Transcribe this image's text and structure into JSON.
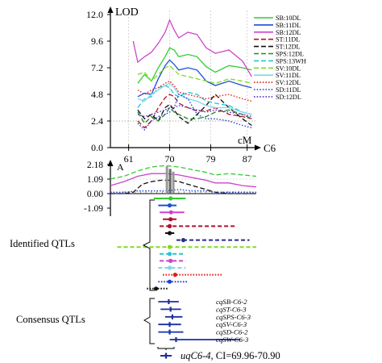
{
  "chart_data": [
    {
      "type": "line",
      "panel": "LOD profiles",
      "ylabel": "LOD",
      "xlabel": "cM",
      "chromosome_label": "C6",
      "ylim": [
        0,
        12
      ],
      "xlim": [
        57,
        89
      ],
      "y_ticks": [
        "0.0",
        "2.4",
        "4.8",
        "7.2",
        "9.6",
        "12.0"
      ],
      "x_ticks": [
        "61",
        "70",
        "79",
        "87"
      ],
      "legend_position": "right",
      "series": [
        {
          "name": "SB:10DL",
          "color": "#33cc33",
          "dash": "solid",
          "x": [
            63,
            64.5,
            66,
            67.5,
            69,
            70,
            71,
            72,
            74,
            76,
            78,
            80,
            83,
            86,
            88
          ],
          "y": [
            5.8,
            6.6,
            6.0,
            7.2,
            8.2,
            9.0,
            8.8,
            8.2,
            8.4,
            8.2,
            7.3,
            6.8,
            7.4,
            7.2,
            7.0
          ]
        },
        {
          "name": "SB:11DL",
          "color": "#1a4fd6",
          "dash": "solid",
          "x": [
            63,
            64.5,
            66,
            67.5,
            69,
            70,
            71,
            72,
            74,
            76,
            78,
            80,
            83,
            86,
            88
          ],
          "y": [
            4.6,
            4.9,
            4.8,
            6.2,
            7.4,
            7.9,
            7.5,
            7.0,
            7.2,
            7.0,
            6.0,
            5.6,
            6.0,
            5.6,
            5.4
          ]
        },
        {
          "name": "SB:12DL",
          "color": "#cc44cc",
          "dash": "solid",
          "x": [
            62,
            63,
            64.5,
            66,
            67.5,
            69,
            70,
            71,
            72,
            74,
            76,
            78,
            80,
            83,
            86,
            88
          ],
          "y": [
            9.6,
            7.7,
            8.2,
            8.6,
            9.4,
            10.4,
            11.5,
            10.6,
            9.9,
            10.4,
            10.2,
            9.0,
            8.5,
            8.8,
            7.8,
            6.4
          ]
        },
        {
          "name": "ST:11DL",
          "color": "#b0102a",
          "dash": "dash",
          "x": [
            63,
            64.5,
            66,
            67.5,
            69,
            70,
            71,
            72,
            74,
            76,
            78,
            80,
            83,
            86,
            88
          ],
          "y": [
            2.4,
            1.8,
            2.4,
            3.6,
            4.5,
            4.8,
            4.6,
            4.0,
            3.6,
            3.3,
            3.3,
            3.6,
            3.0,
            2.8,
            2.6
          ]
        },
        {
          "name": "ST:12DL",
          "color": "#111111",
          "dash": "dash",
          "x": [
            63,
            64.5,
            66,
            67.5,
            69,
            70,
            71,
            72,
            74,
            76,
            78,
            80,
            83,
            86,
            88
          ],
          "y": [
            3.4,
            2.6,
            3.0,
            2.4,
            3.6,
            3.9,
            3.4,
            2.8,
            2.2,
            3.0,
            3.8,
            4.8,
            3.6,
            2.6,
            2.0
          ]
        },
        {
          "name": "SPS:12DL",
          "color": "#2a8a2a",
          "dash": "dash",
          "x": [
            63,
            64.5,
            66,
            67.5,
            69,
            70,
            71,
            72,
            74,
            76,
            78,
            80,
            83,
            86,
            88
          ],
          "y": [
            3.2,
            2.2,
            2.8,
            2.4,
            3.0,
            3.6,
            3.2,
            3.0,
            2.6,
            2.6,
            2.8,
            3.2,
            3.4,
            3.0,
            2.6
          ]
        },
        {
          "name": "SPS:13WH",
          "color": "#22c5d6",
          "dash": "dash",
          "x": [
            63,
            64.5,
            66,
            67.5,
            69,
            70,
            71,
            72,
            74,
            76,
            78,
            80,
            83,
            86,
            88
          ],
          "y": [
            3.6,
            4.4,
            4.6,
            5.4,
            5.6,
            5.4,
            4.8,
            4.6,
            5.0,
            4.8,
            4.2,
            4.0,
            3.8,
            3.2,
            3.0
          ]
        },
        {
          "name": "SV:10DL",
          "color": "#7ddc1f",
          "dash": "dash",
          "x": [
            63,
            64.5,
            66,
            67.5,
            69,
            70,
            71,
            72,
            74,
            76,
            78,
            80,
            83,
            86,
            88
          ],
          "y": [
            6.6,
            6.8,
            6.0,
            6.6,
            7.2,
            7.4,
            7.0,
            6.6,
            6.4,
            6.2,
            6.0,
            5.8,
            6.2,
            6.0,
            5.8
          ]
        },
        {
          "name": "SV:11DL",
          "color": "#7fd6ee",
          "dash": "solid",
          "x": [
            63,
            64.5,
            66,
            67.5,
            69,
            70,
            71,
            72,
            74,
            76,
            78,
            80,
            83,
            86,
            88
          ],
          "y": [
            4.4,
            4.2,
            4.8,
            5.2,
            5.6,
            5.8,
            5.4,
            4.8,
            4.4,
            4.2,
            3.8,
            3.6,
            3.6,
            3.2,
            3.0
          ]
        },
        {
          "name": "SV:12DL",
          "color": "#e0201a",
          "dash": "dot",
          "x": [
            63,
            64.5,
            66,
            67.5,
            69,
            70,
            71,
            72,
            74,
            76,
            78,
            80,
            83,
            86,
            88
          ],
          "y": [
            5.2,
            4.8,
            5.2,
            5.4,
            5.8,
            6.0,
            5.6,
            5.0,
            4.8,
            4.6,
            4.4,
            4.6,
            4.8,
            4.4,
            4.2
          ]
        },
        {
          "name": "SD:11DL",
          "color": "#1f3fd6",
          "dash": "dot",
          "x": [
            63,
            64.5,
            66,
            67.5,
            69,
            70,
            71,
            72,
            74,
            76,
            78,
            80,
            83,
            86,
            88
          ],
          "y": [
            2.2,
            1.6,
            2.4,
            2.8,
            3.0,
            3.2,
            3.6,
            4.8,
            4.4,
            3.0,
            2.6,
            2.6,
            2.4,
            2.0,
            1.8
          ]
        },
        {
          "name": "SD:12DL",
          "color": "#5a2dc9",
          "dash": "dot",
          "x": [
            63,
            64.5,
            66,
            67.5,
            69,
            70,
            71,
            72,
            74,
            76,
            78,
            80,
            83,
            86,
            88
          ],
          "y": [
            3.0,
            2.8,
            3.0,
            3.2,
            3.4,
            3.6,
            3.6,
            3.8,
            3.6,
            3.4,
            3.2,
            3.4,
            3.2,
            3.0,
            2.8
          ]
        }
      ]
    },
    {
      "type": "line",
      "panel": "Additive effect",
      "ylabel": "A",
      "y_ticks": [
        "-1.09",
        "0.00",
        "1.09",
        "2.18"
      ],
      "ylim": [
        -1.09,
        2.18
      ],
      "series": [
        {
          "name": "SB:10DL",
          "color": "#33cc33",
          "dash": "dash",
          "x": [
            57,
            60,
            63,
            66,
            69,
            72,
            75,
            78,
            80,
            83,
            86,
            89
          ],
          "y": [
            1.1,
            1.3,
            1.7,
            2.0,
            2.1,
            2.0,
            1.8,
            1.6,
            1.4,
            1.5,
            1.4,
            1.3
          ]
        },
        {
          "name": "SB:12DL",
          "color": "#cc44cc",
          "dash": "solid",
          "x": [
            57,
            60,
            63,
            66,
            69,
            72,
            75,
            78,
            80,
            83,
            86,
            89
          ],
          "y": [
            0.6,
            0.9,
            1.3,
            1.5,
            1.5,
            1.4,
            1.2,
            1.0,
            0.8,
            0.8,
            0.6,
            0.5
          ]
        },
        {
          "name": "ST:12DL",
          "color": "#111111",
          "dash": "dash",
          "x": [
            57,
            60,
            62,
            64,
            66,
            68,
            70,
            72,
            75,
            78,
            80,
            83,
            86,
            89
          ],
          "y": [
            0.0,
            0.0,
            0.1,
            0.7,
            0.9,
            1.0,
            1.0,
            0.9,
            0.6,
            0.3,
            0.1,
            0.0,
            0.0,
            0.0
          ]
        },
        {
          "name": "SD:11DL",
          "color": "#1f3fd6",
          "dash": "dot",
          "x": [
            57,
            60,
            63,
            66,
            69,
            72,
            75,
            78,
            80,
            83,
            86,
            89
          ],
          "y": [
            0.1,
            0.1,
            0.2,
            0.2,
            0.2,
            0.3,
            0.2,
            0.2,
            0.1,
            0.1,
            0.1,
            0.1
          ]
        }
      ]
    },
    {
      "type": "other",
      "panel": "QTL intervals",
      "identified_label": "Identified QTLs",
      "consensus_label": "Consensus QTLs",
      "identified": [
        {
          "color": "#33cc33",
          "style": "solid",
          "peak": 70.2,
          "lo": 66.5,
          "hi": 73.5
        },
        {
          "color": "#1a4fd6",
          "style": "solid",
          "peak": 70.0,
          "lo": 67.5,
          "hi": 71.5
        },
        {
          "color": "#cc44cc",
          "style": "solid",
          "peak": 70.3,
          "lo": 67.8,
          "hi": 73.2
        },
        {
          "color": "#b0102a",
          "style": "solid",
          "peak": 70.2,
          "lo": 68.5,
          "hi": 71.5
        },
        {
          "color": "#b0102a",
          "style": "dash",
          "peak": 70.0,
          "lo": 67.8,
          "hi": 84.5
        },
        {
          "color": "#111111",
          "style": "dash",
          "peak": 70.0,
          "lo": 69.0,
          "hi": 71.0
        },
        {
          "color": "#2a2a8a",
          "style": "dash",
          "peak": 73.0,
          "lo": 71.5,
          "hi": 87.5
        },
        {
          "color": "#7ddc1f",
          "style": "dash",
          "peak": 70.0,
          "lo": 58.5,
          "hi": 89.0
        },
        {
          "color": "#22c5d6",
          "style": "dash",
          "peak": 70.0,
          "lo": 67.8,
          "hi": 73.2
        },
        {
          "color": "#cc44cc",
          "style": "dash",
          "peak": 70.2,
          "lo": 67.8,
          "hi": 73.5
        },
        {
          "color": "#7fd6ee",
          "style": "dash",
          "peak": 70.0,
          "lo": 67.5,
          "hi": 73.5
        },
        {
          "color": "#e0201a",
          "style": "dot",
          "peak": 71.2,
          "lo": 68.5,
          "hi": 81.5
        },
        {
          "color": "#1f3fd6",
          "style": "dot",
          "peak": 70.0,
          "lo": 67.5,
          "hi": 73.8
        },
        {
          "color": "#111111",
          "style": "dot",
          "peak": 67.0,
          "lo": 65.0,
          "hi": 69.5
        }
      ],
      "consensus": [
        {
          "label": "cqSB-C6-2",
          "peak": 69.8,
          "lo": 67.5,
          "hi": 72.0
        },
        {
          "label": "cqST-C6-3",
          "peak": 70.2,
          "lo": 68.0,
          "hi": 72.5
        },
        {
          "label": "cqSPS-C6-3",
          "peak": 70.6,
          "lo": 69.0,
          "hi": 72.8
        },
        {
          "label": "cqSV-C6-3",
          "peak": 70.0,
          "lo": 67.5,
          "hi": 72.5
        },
        {
          "label": "cqSD-C6-2",
          "peak": 70.0,
          "lo": 67.5,
          "hi": 73.0
        },
        {
          "label": "cqSW-C6-3",
          "peak": 71.4,
          "lo": 70.0,
          "hi": 85.5
        }
      ],
      "overall": {
        "name": "uqC6-4",
        "ci_text": ", CI=69.96-70.90",
        "peak": 70.43,
        "lo": 69.96,
        "hi": 70.9,
        "color": "#1a2fa0"
      }
    }
  ]
}
